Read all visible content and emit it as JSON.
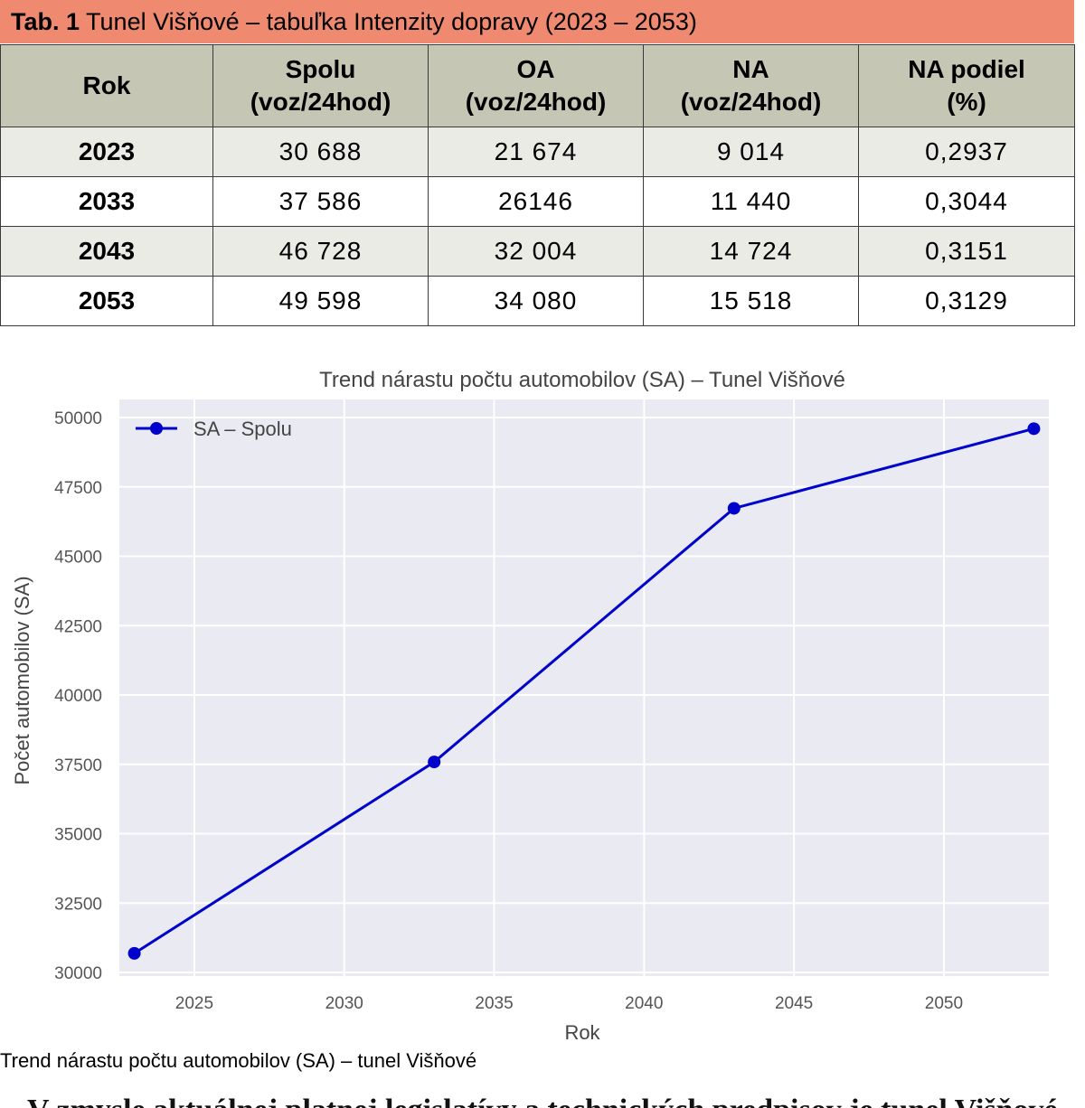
{
  "table": {
    "caption_bold": "Tab. 1",
    "caption_text": " Tunel Višňové – tabuľka Intenzity dopravy (2023 – 2053)",
    "headers": [
      {
        "line1": "Rok",
        "line2": ""
      },
      {
        "line1": "Spolu",
        "line2": "(voz/24hod)"
      },
      {
        "line1": "OA",
        "line2": "(voz/24hod)"
      },
      {
        "line1": "NA",
        "line2": "(voz/24hod)"
      },
      {
        "line1": "NA podiel",
        "line2": "(%)"
      }
    ],
    "rows": [
      [
        "2023",
        "30 688",
        "21  674",
        "9 014",
        "0,2937"
      ],
      [
        "2033",
        "37 586",
        "26146",
        "11 440",
        "0,3044"
      ],
      [
        "2043",
        "46 728",
        "32 004",
        "14 724",
        "0,3151"
      ],
      [
        "2053",
        "49 598",
        "34 080",
        "15 518",
        "0,3129"
      ]
    ]
  },
  "chart_data": {
    "type": "line",
    "title": "Trend nárastu počtu automobilov (SA) – Tunel Višňové",
    "xlabel": "Rok",
    "ylabel": "Počet automobilov (SA)",
    "xlim": [
      2022.5,
      2053.5
    ],
    "ylim": [
      30000,
      50000
    ],
    "xticks": [
      2025,
      2030,
      2035,
      2040,
      2045,
      2050
    ],
    "yticks": [
      30000,
      32500,
      35000,
      37500,
      40000,
      42500,
      45000,
      47500,
      50000
    ],
    "grid": true,
    "legend_position": "top-left",
    "background_color": "#eaeaf2",
    "series": [
      {
        "name": "SA – Spolu",
        "color": "#0000cc",
        "x": [
          2023,
          2033,
          2043,
          2053
        ],
        "y": [
          30688,
          37586,
          46728,
          49598
        ]
      }
    ]
  },
  "chart_caption": "Trend nárastu počtu automobilov (SA) – tunel Višňové",
  "bottom_text": "V zmysle aktuálnej platnej legislatívy a technických predpisov je tunel Višňové"
}
